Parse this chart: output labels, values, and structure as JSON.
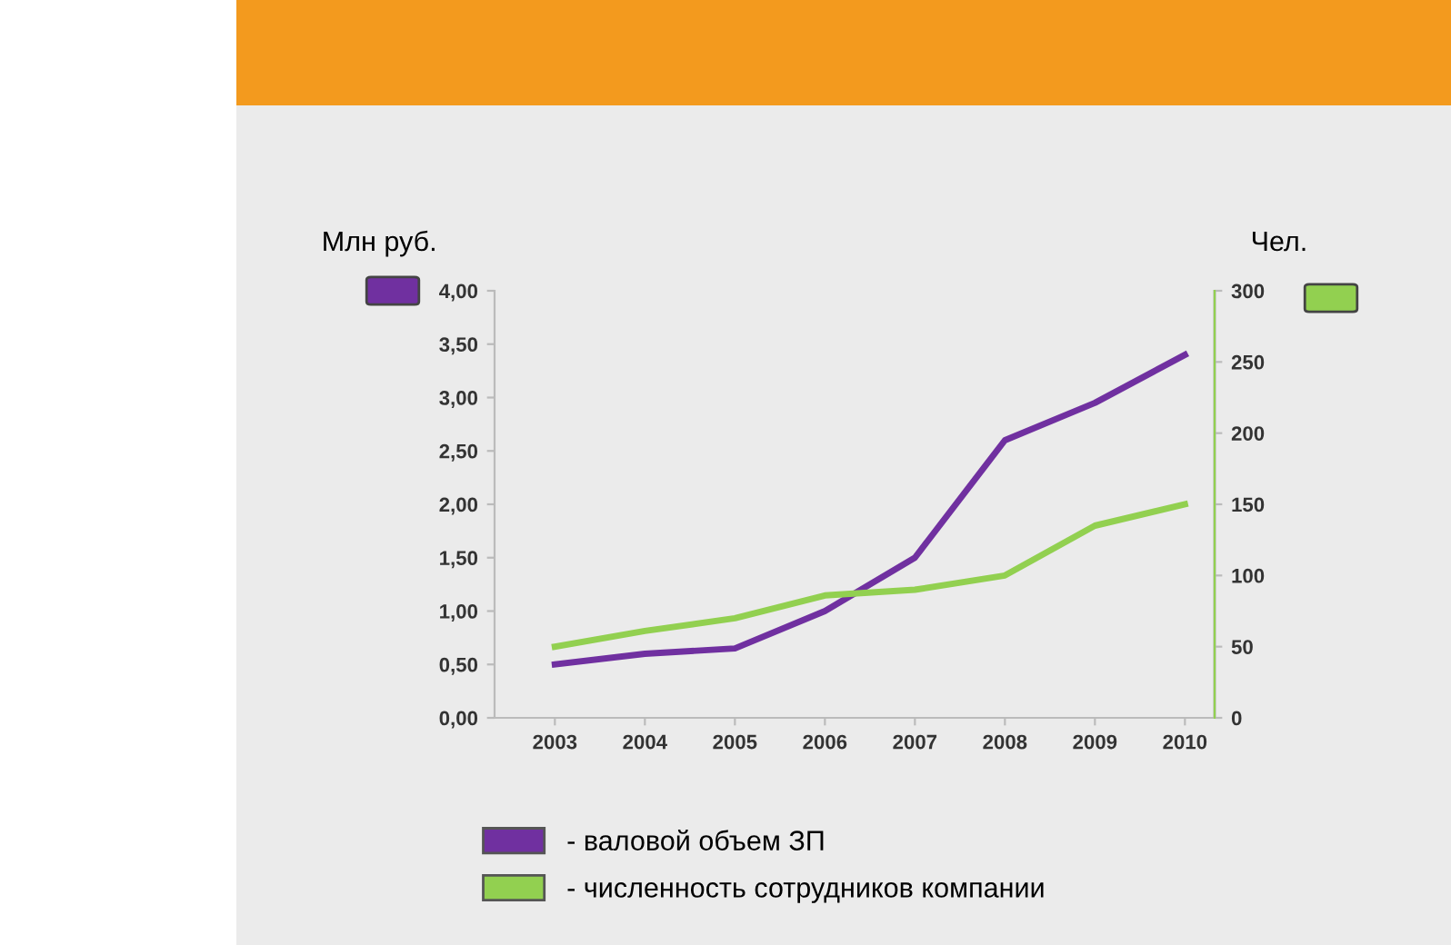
{
  "chart_data": {
    "type": "line",
    "ylabel": "Млн руб.",
    "y2label": "Чел.",
    "categories": [
      "2003",
      "2004",
      "2005",
      "2006",
      "2007",
      "2008",
      "2009",
      "2010"
    ],
    "series": [
      {
        "name": "- валовой объем ЗП",
        "color": "#7030a0",
        "values": [
          0.5,
          0.6,
          0.65,
          1.0,
          1.5,
          2.6,
          2.95,
          3.4
        ]
      },
      {
        "name": "- численность сотрудников компании",
        "color": "#92d050",
        "axis": "y2",
        "values": [
          50,
          61,
          70,
          86,
          90,
          100,
          135,
          150
        ]
      }
    ],
    "ylim": [
      0,
      4
    ],
    "yticks": [
      {
        "value": 0,
        "label": "0,00"
      },
      {
        "value": 0.5,
        "label": "0,50"
      },
      {
        "value": 1,
        "label": "1,00"
      },
      {
        "value": 1.5,
        "label": "1,50"
      },
      {
        "value": 2,
        "label": "2,00"
      },
      {
        "value": 2.5,
        "label": "2,50"
      },
      {
        "value": 3,
        "label": "3,00"
      },
      {
        "value": 3.5,
        "label": "3,50"
      },
      {
        "value": 4,
        "label": "4,00"
      }
    ],
    "y2lim": [
      0,
      300
    ],
    "y2ticks": [
      0,
      50,
      100,
      150,
      200,
      250,
      300
    ],
    "grid": false,
    "legend": "bottom",
    "marker": "none",
    "line_style": "solid"
  }
}
